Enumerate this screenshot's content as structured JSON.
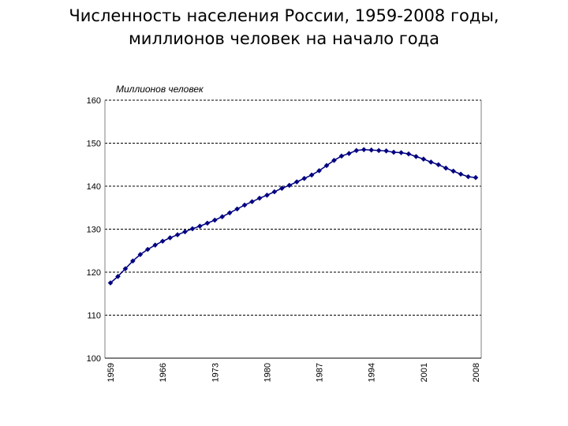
{
  "title": {
    "line1": "Численность населения России, 1959-2008 годы,",
    "line2": "миллионов человек на начало года"
  },
  "chart_data": {
    "type": "line",
    "title": "Численность населения России, 1959-2008 годы, миллионов человек на начало года",
    "ylabel": "Миллионов человек",
    "xlabel": "",
    "ylim": [
      100,
      160
    ],
    "y_ticks": [
      "160",
      "150",
      "140",
      "130",
      "120",
      "110",
      "100"
    ],
    "x_tick_labels": [
      "1959",
      "1966",
      "1973",
      "1980",
      "1987",
      "1994",
      "2001",
      "2008"
    ],
    "grid": true,
    "marker": "diamond",
    "series_color": "#000080",
    "x": [
      1959,
      1960,
      1961,
      1962,
      1963,
      1964,
      1965,
      1966,
      1967,
      1968,
      1969,
      1970,
      1971,
      1972,
      1973,
      1974,
      1975,
      1976,
      1977,
      1978,
      1979,
      1980,
      1981,
      1982,
      1983,
      1984,
      1985,
      1986,
      1987,
      1988,
      1989,
      1990,
      1991,
      1992,
      1993,
      1994,
      1995,
      1996,
      1997,
      1998,
      1999,
      2000,
      2001,
      2002,
      2003,
      2004,
      2005,
      2006,
      2007,
      2008
    ],
    "y": [
      117.5,
      119.0,
      120.8,
      122.6,
      124.1,
      125.3,
      126.3,
      127.2,
      128.0,
      128.7,
      129.4,
      130.1,
      130.7,
      131.4,
      132.1,
      132.9,
      133.8,
      134.7,
      135.6,
      136.4,
      137.2,
      137.9,
      138.7,
      139.5,
      140.2,
      141.0,
      141.8,
      142.6,
      143.6,
      144.8,
      146.0,
      147.0,
      147.6,
      148.3,
      148.5,
      148.4,
      148.3,
      148.2,
      147.9,
      147.8,
      147.5,
      146.9,
      146.3,
      145.6,
      145.0,
      144.2,
      143.5,
      142.8,
      142.2,
      142.0
    ]
  }
}
